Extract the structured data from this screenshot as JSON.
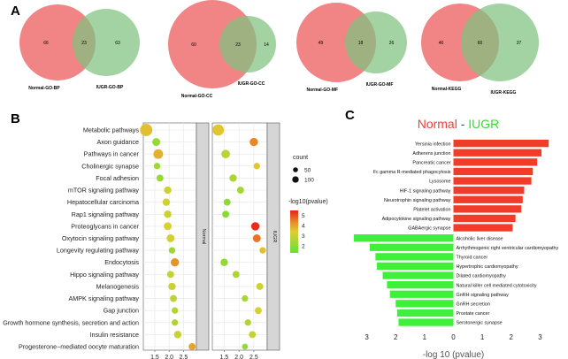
{
  "panels": {
    "a": "A",
    "b": "B",
    "c": "C"
  },
  "colors": {
    "venn_left": "#ee7070",
    "venn_right": "#7fc07f",
    "venn_overlap": "#d8b28a",
    "bar_up": "#f03c28",
    "bar_down": "#3ef03a",
    "title_normal": "#ee4035",
    "title_iugr": "#3fd63a"
  },
  "chart_data": [
    {
      "type": "venn",
      "sets": [
        {
          "label": "Normal-GO-BP",
          "left": "66",
          "overlap": "23",
          "right": "63",
          "left_label": "Normal-GO-BP",
          "right_label": "IUGR-GO-BP"
        },
        {
          "label": "Normal-GO-CC",
          "left": "60",
          "overlap": "23",
          "right": "14",
          "left_label": "Normal-GO-CC",
          "right_label": "IUGR-GO-CC"
        },
        {
          "label": "Normal-GO-MF",
          "left": "49",
          "overlap": "18",
          "right": "26",
          "left_label": "Normal-GO-MF",
          "right_label": "IUGR-GO-MF"
        },
        {
          "label": "Normal-KEGG",
          "left": "46",
          "overlap": "60",
          "right": "37",
          "left_label": "Normal-KEGG",
          "right_label": "IUGR-KEGG"
        }
      ]
    },
    {
      "type": "scatter",
      "categories": [
        "Metabolic pathways",
        "Axon guidance",
        "Pathways in cancer",
        "Cholinergic synapse",
        "Focal adhesion",
        "mTOR signaling pathway",
        "Hepatocellular carcinoma",
        "Rap1 signaling pathway",
        "Proteoglycans in cancer",
        "Oxytocin signaling pathway",
        "Longevity regulating pathway",
        "Endocytosis",
        "Hippo signaling pathway",
        "Melanogenesis",
        "AMPK signaling pathway",
        "Gap junction",
        "Growth hormone synthesis, secretion and action",
        "Insulin resistance",
        "Progesterone−mediated oocyte maturation"
      ],
      "facets": [
        "Normal",
        "IUGR"
      ],
      "xticks": [
        "1.5",
        "2.0",
        "2.5"
      ],
      "xlim": [
        1.1,
        2.95
      ],
      "legend_count_title": "count",
      "legend_count": [
        {
          "label": "50",
          "value": 50
        },
        {
          "label": "100",
          "value": 100
        }
      ],
      "legend_color_title": "-log10(pvalue)",
      "legend_color_ticks": [
        "5",
        "4",
        "3",
        "2"
      ],
      "color_range": [
        1.3,
        5.5
      ],
      "series": [
        {
          "name": "Normal",
          "x": [
            1.2,
            1.55,
            1.62,
            1.58,
            1.68,
            1.95,
            1.9,
            1.95,
            1.95,
            2.05,
            2.1,
            2.2,
            2.05,
            2.1,
            2.15,
            2.2,
            2.2,
            2.3,
            2.8
          ],
          "sizes": [
            110,
            35,
            60,
            20,
            25,
            30,
            30,
            30,
            35,
            35,
            20,
            40,
            25,
            30,
            25,
            20,
            20,
            30,
            25
          ],
          "colors": [
            3.6,
            2.1,
            3.8,
            2.3,
            2.2,
            3.0,
            3.1,
            3.0,
            3.3,
            3.2,
            2.2,
            4.2,
            2.9,
            3.0,
            2.8,
            2.6,
            2.6,
            3.0,
            4.0
          ]
        },
        {
          "name": "IUGR",
          "x": [
            1.3,
            2.5,
            1.55,
            2.6,
            1.8,
            2.05,
            1.6,
            1.55,
            2.55,
            2.6,
            2.8,
            1.5,
            1.9,
            2.7,
            2.2,
            2.65,
            2.3,
            2.45,
            2.2
          ],
          "sizes": [
            90,
            40,
            45,
            20,
            30,
            25,
            25,
            25,
            40,
            35,
            20,
            30,
            25,
            25,
            20,
            25,
            20,
            25,
            15
          ],
          "colors": [
            3.5,
            4.4,
            2.8,
            3.5,
            2.5,
            2.3,
            2.0,
            1.9,
            5.4,
            4.6,
            3.6,
            2.0,
            2.5,
            3.1,
            2.4,
            3.3,
            2.6,
            2.9,
            2.1
          ]
        }
      ]
    },
    {
      "type": "bar",
      "title_normal": "Normal",
      "title_sep": " - ",
      "title_iugr": "IUGR",
      "xlabel": "-log 10 (pvalue)",
      "xticks": [
        "3",
        "2",
        "1",
        "0",
        "1",
        "2",
        "3"
      ],
      "xlim": [
        -3.6,
        3.6
      ],
      "series": [
        {
          "name": "Normal",
          "categories": [
            "Yersinia infection",
            "Adherens junction",
            "Pancreatic cancer",
            "Fc gamma R-mediated phagocytosis",
            "Lysosome",
            "HIF-1 signaling pathway",
            "Neurotrophin signaling pathway",
            "Platelet activation",
            "Adipocytokine signaling pathway",
            "GABAergic synapse"
          ],
          "values": [
            3.3,
            3.05,
            2.9,
            2.75,
            2.7,
            2.45,
            2.4,
            2.35,
            2.15,
            2.05
          ]
        },
        {
          "name": "IUGR",
          "categories": [
            "Alcoholic liver disease",
            "Arrhythmogenic right ventricular cardiomyopathy",
            "Thyroid cancer",
            "Hypertrophic cardiomyopathy",
            "Dilated cardiomyopathy",
            "Natural killer cell mediated cytotoxicity",
            "GnRH signaling pathway",
            "GnRH secretion",
            "Prostate cancer",
            "Serotonergic synapse"
          ],
          "values": [
            -3.45,
            -2.9,
            -2.7,
            -2.65,
            -2.45,
            -2.3,
            -2.2,
            -2.0,
            -1.95,
            -1.9
          ]
        }
      ]
    }
  ]
}
